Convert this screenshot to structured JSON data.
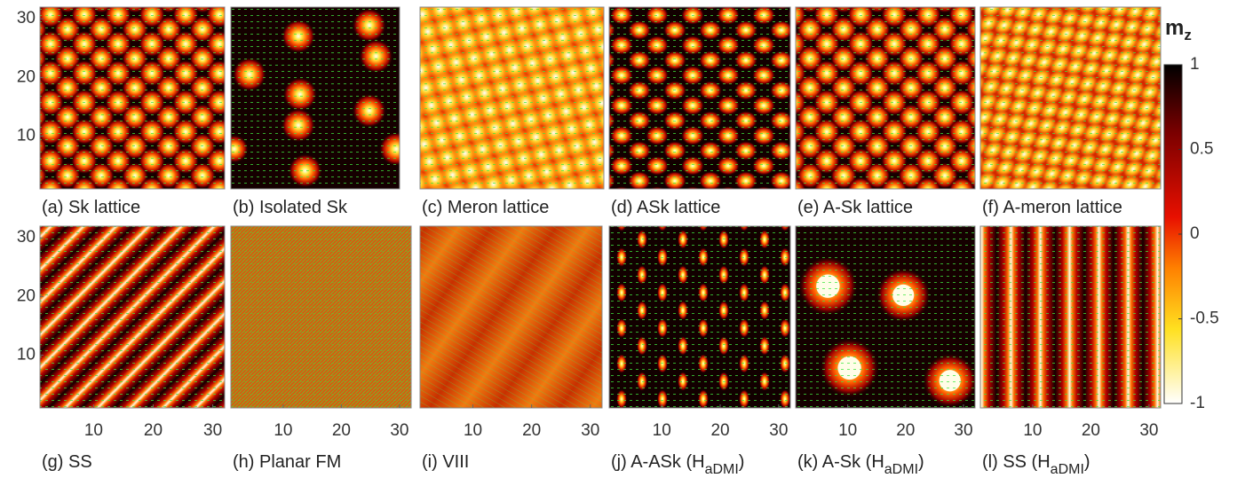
{
  "panels": [
    {
      "label": "(a) Sk lattice"
    },
    {
      "label": "(b) Isolated Sk"
    },
    {
      "label": "(c) Meron lattice"
    },
    {
      "label": "(d) ASk lattice"
    },
    {
      "label": "(e) A-Sk lattice"
    },
    {
      "label": "(f) A-meron lattice"
    },
    {
      "label": "(g) SS"
    },
    {
      "label": "(h) Planar FM"
    },
    {
      "label": "(i) VIII"
    },
    {
      "label": "(j) A-ASk (H",
      "subscript": "aDMI",
      "label_end": ")"
    },
    {
      "label": "(k) A-Sk (H",
      "subscript": "aDMI",
      "label_end": ")"
    },
    {
      "label": "(l) SS (H",
      "subscript": "aDMI",
      "label_end": ")"
    }
  ],
  "axes": {
    "xlim": [
      1,
      32
    ],
    "ylim": [
      1,
      32
    ],
    "xticks": [
      10,
      20,
      30
    ],
    "yticks": [
      10,
      20,
      30
    ]
  },
  "colorbar": {
    "title": "m",
    "title_subscript": "z",
    "lim": [
      -1,
      1
    ],
    "ticks": [
      1,
      0.5,
      0,
      -0.5,
      -1
    ]
  }
}
